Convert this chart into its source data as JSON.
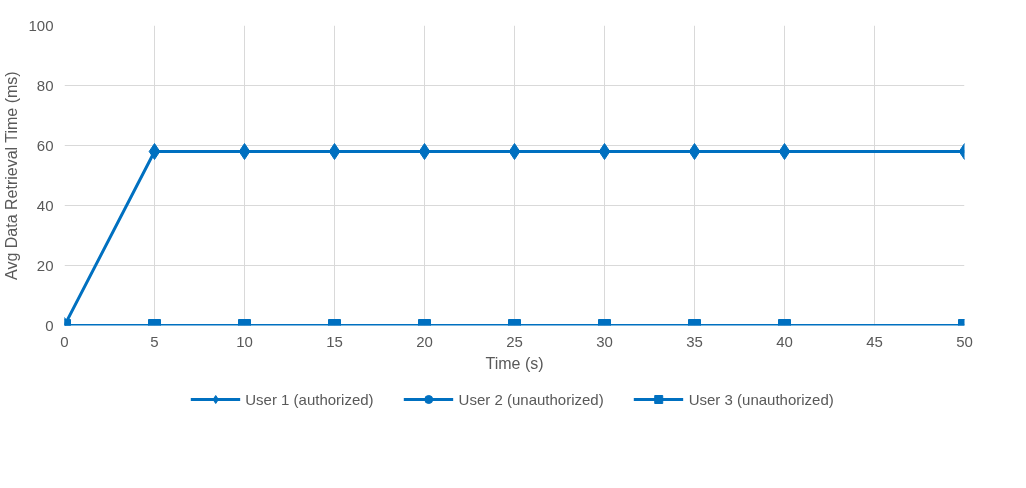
{
  "chart_data": {
    "type": "line",
    "xlabel": "Time (s)",
    "ylabel": "Avg Data Retrieval Time (ms)",
    "x": [
      0,
      5,
      10,
      15,
      20,
      25,
      30,
      35,
      40,
      50
    ],
    "xlim": [
      0,
      50
    ],
    "xticks": [
      0,
      5,
      10,
      15,
      20,
      25,
      30,
      35,
      40,
      45,
      50
    ],
    "ylim": [
      0,
      100
    ],
    "yticks": [
      0,
      20,
      40,
      60,
      80,
      100
    ],
    "grid": true,
    "legend": "bottom",
    "line_style": "solid",
    "series": [
      {
        "name": "User 1 (authorized)",
        "color": "#0070c0",
        "marker": "diamond",
        "values": [
          0,
          58,
          58,
          58,
          58,
          58,
          58,
          58,
          58,
          58
        ]
      },
      {
        "name": "User 2 (unauthorized)",
        "color": "#0070c0",
        "marker": "circle",
        "values": [
          null,
          null,
          null,
          null,
          null,
          null,
          null,
          null,
          null,
          null
        ]
      },
      {
        "name": "User 3 (unauthorized)",
        "color": "#0070c0",
        "marker": "square",
        "values": [
          0,
          0,
          0,
          0,
          0,
          0,
          0,
          0,
          0,
          0
        ]
      }
    ]
  }
}
